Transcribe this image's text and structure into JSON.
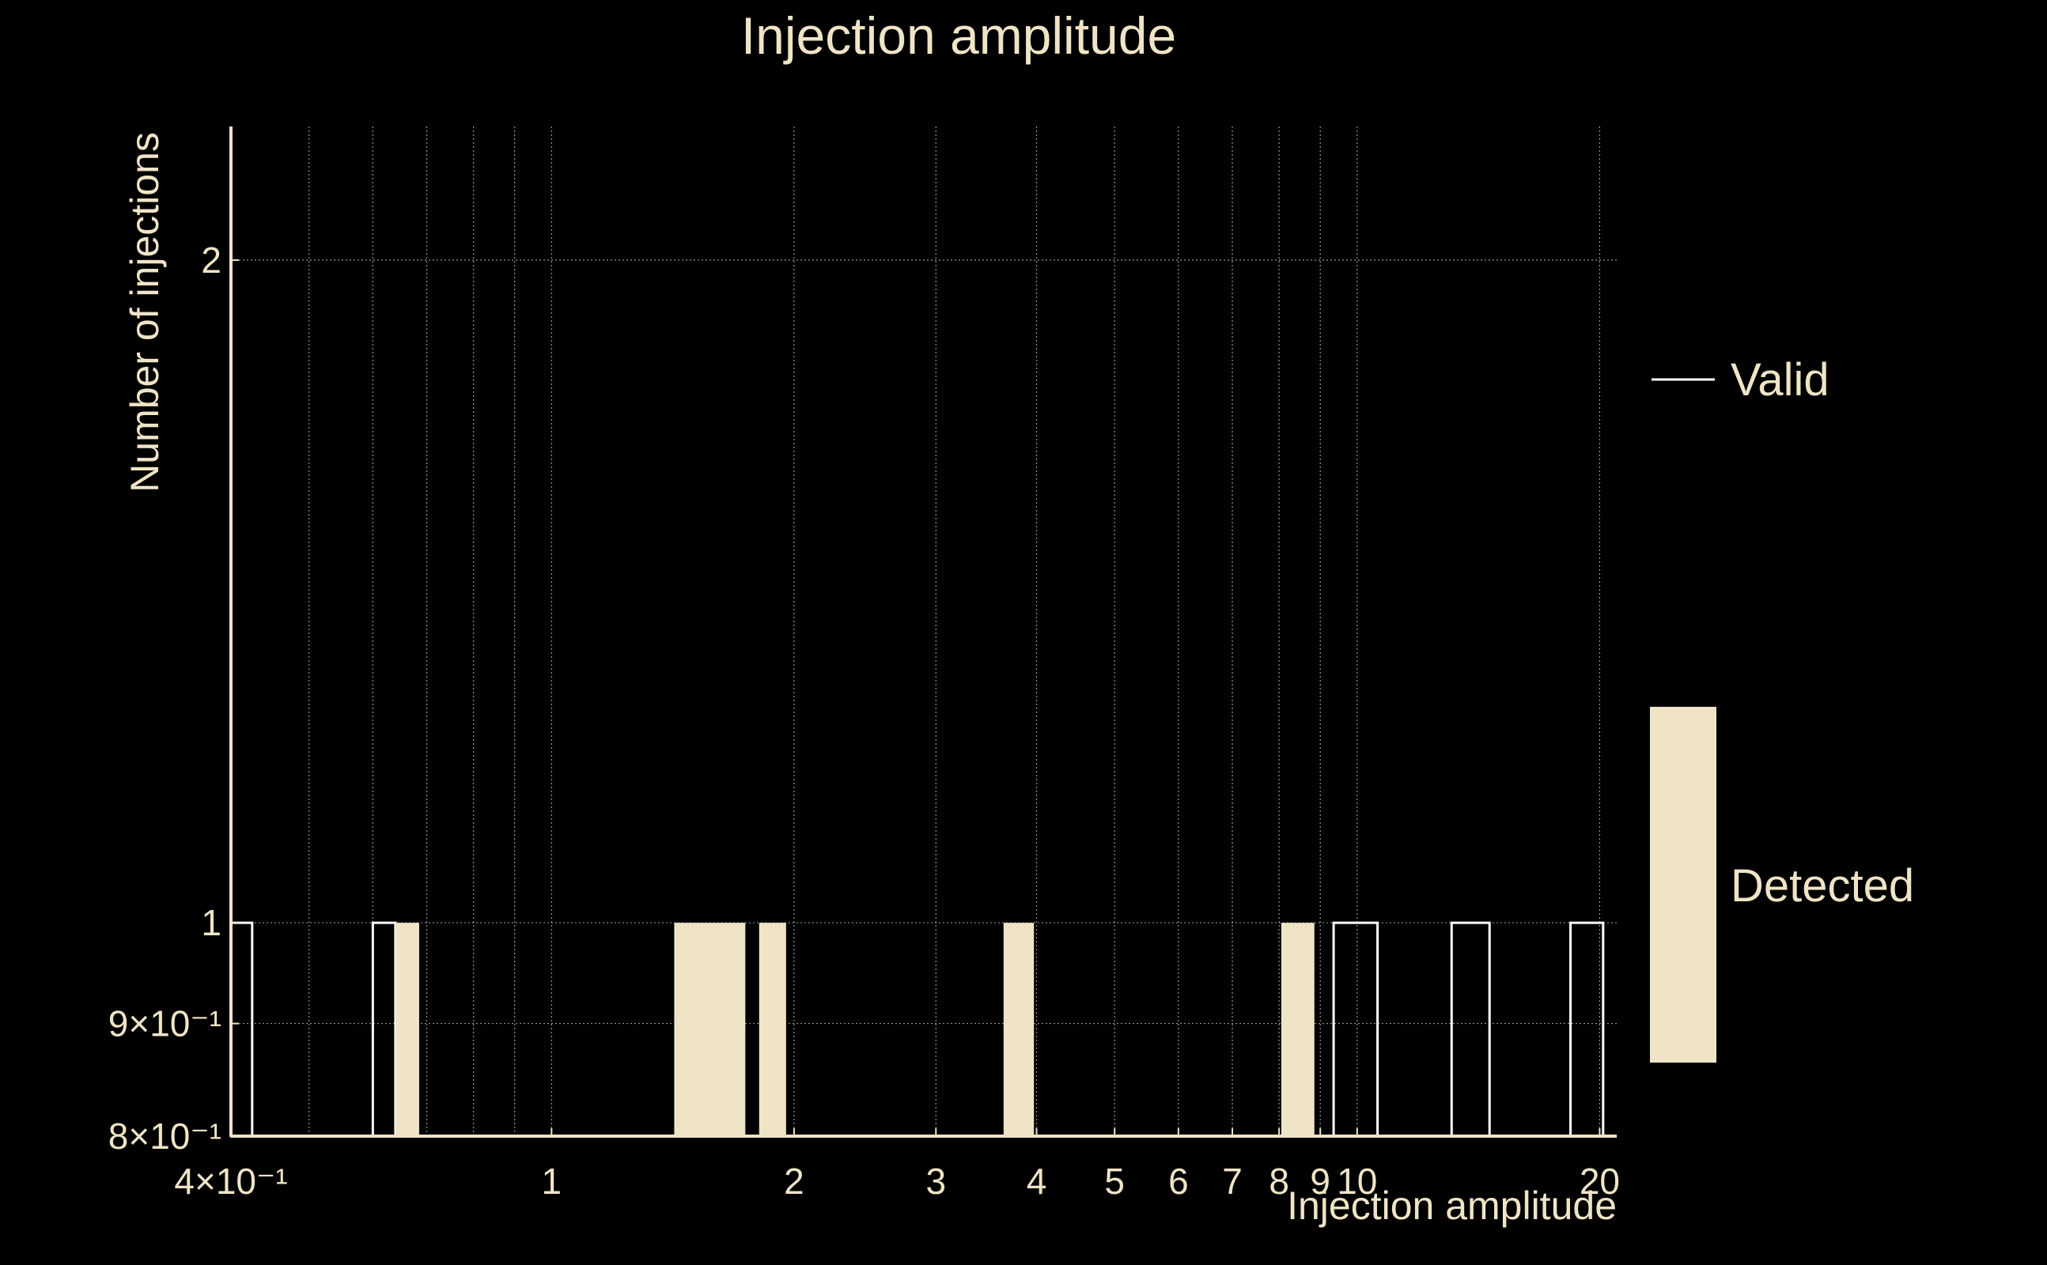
{
  "chart_data": {
    "type": "bar",
    "title": "Injection amplitude",
    "xlabel": "Injection amplitude",
    "ylabel": "Number of injections",
    "xscale": "log",
    "yscale": "log",
    "xlim": [
      0.4,
      21
    ],
    "ylim": [
      0.8,
      2.3
    ],
    "grid": true,
    "legend_placement": "right",
    "x_ticks": [
      {
        "value": 0.4,
        "label": "4×10⁻¹"
      },
      {
        "value": 1,
        "label": "1"
      },
      {
        "value": 2,
        "label": "2"
      },
      {
        "value": 3,
        "label": "3"
      },
      {
        "value": 4,
        "label": "4"
      },
      {
        "value": 5,
        "label": "5"
      },
      {
        "value": 6,
        "label": "6"
      },
      {
        "value": 7,
        "label": "7"
      },
      {
        "value": 8,
        "label": "8"
      },
      {
        "value": 9,
        "label": "9"
      },
      {
        "value": 10,
        "label": "10"
      },
      {
        "value": 20,
        "label": "20"
      }
    ],
    "x_minor_grid": [
      0.5,
      0.6,
      0.7,
      0.8,
      0.9
    ],
    "y_ticks": [
      {
        "value": 0.8,
        "label": "8×10⁻¹"
      },
      {
        "value": 0.9,
        "label": "9×10⁻¹"
      },
      {
        "value": 1,
        "label": "1"
      },
      {
        "value": 2,
        "label": "2"
      }
    ],
    "series": [
      {
        "name": "Valid",
        "style": "outline",
        "color": "#ffffff",
        "bins": [
          {
            "x0": 0.4,
            "x1": 0.425,
            "count": 1
          },
          {
            "x0": 0.6,
            "x1": 0.64,
            "count": 1
          },
          {
            "x0": 9.35,
            "x1": 10.6,
            "count": 1
          },
          {
            "x0": 13.1,
            "x1": 14.6,
            "count": 1
          },
          {
            "x0": 18.4,
            "x1": 20.2,
            "count": 1
          }
        ]
      },
      {
        "name": "Detected",
        "style": "filled",
        "color": "#efe4c6",
        "bins": [
          {
            "x0": 0.64,
            "x1": 0.685,
            "count": 1
          },
          {
            "x0": 1.42,
            "x1": 1.74,
            "count": 1
          },
          {
            "x0": 1.81,
            "x1": 1.955,
            "count": 1
          },
          {
            "x0": 3.64,
            "x1": 3.97,
            "count": 1
          },
          {
            "x0": 8.05,
            "x1": 8.85,
            "count": 1
          }
        ]
      }
    ]
  }
}
